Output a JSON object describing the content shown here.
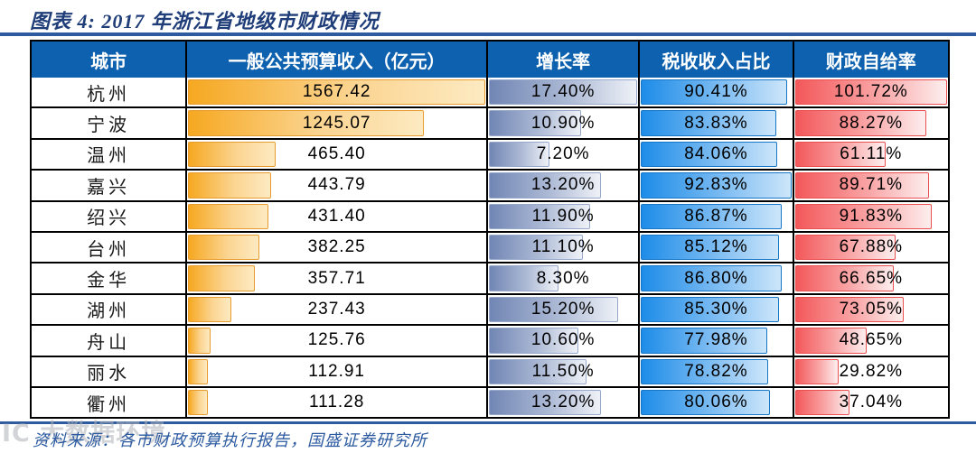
{
  "title": "图表 4: 2017 年浙江省地级市财政情况",
  "source_note": "资料来源：各市财政预算执行报告，国盛证券研究所",
  "watermark_text": "IC 大数据环境",
  "colors": {
    "title_blue": "#1f3d78",
    "rule_blue": "#2e5b9f",
    "header_bg": "#0e61ae",
    "header_text": "#ffffff",
    "bar_revenue": "#f6a821",
    "bar_growth": "#7186b4",
    "bar_tax": "#1d8ce8",
    "bar_self": "#f3585a",
    "grid_border": "#000000"
  },
  "chart_data": {
    "type": "table",
    "title": "图表 4: 2017 年浙江省地级市财政情况",
    "columns": [
      "城市",
      "一般公共预算收入（亿元）",
      "增长率",
      "税收收入占比",
      "财政自给率"
    ],
    "bar_scale": {
      "revenue_max": 1567.42,
      "growth_max": 17.4,
      "tax_max": 92.83,
      "self_max": 101.72
    },
    "rows": [
      {
        "city": "杭州",
        "revenue": 1567.42,
        "growth_pct": 17.4,
        "tax_share_pct": 90.41,
        "self_sufficiency_pct": 101.72
      },
      {
        "city": "宁波",
        "revenue": 1245.07,
        "growth_pct": 10.9,
        "tax_share_pct": 83.83,
        "self_sufficiency_pct": 88.27
      },
      {
        "city": "温州",
        "revenue": 465.4,
        "growth_pct": 7.2,
        "tax_share_pct": 84.06,
        "self_sufficiency_pct": 61.11
      },
      {
        "city": "嘉兴",
        "revenue": 443.79,
        "growth_pct": 13.2,
        "tax_share_pct": 92.83,
        "self_sufficiency_pct": 89.71
      },
      {
        "city": "绍兴",
        "revenue": 431.4,
        "growth_pct": 11.9,
        "tax_share_pct": 86.87,
        "self_sufficiency_pct": 91.83
      },
      {
        "city": "台州",
        "revenue": 382.25,
        "growth_pct": 11.1,
        "tax_share_pct": 85.12,
        "self_sufficiency_pct": 67.88
      },
      {
        "city": "金华",
        "revenue": 357.71,
        "growth_pct": 8.3,
        "tax_share_pct": 86.8,
        "self_sufficiency_pct": 66.65
      },
      {
        "city": "湖州",
        "revenue": 237.43,
        "growth_pct": 15.2,
        "tax_share_pct": 85.3,
        "self_sufficiency_pct": 73.05
      },
      {
        "city": "舟山",
        "revenue": 125.76,
        "growth_pct": 10.6,
        "tax_share_pct": 77.98,
        "self_sufficiency_pct": 48.65
      },
      {
        "city": "丽水",
        "revenue": 112.91,
        "growth_pct": 11.5,
        "tax_share_pct": 78.82,
        "self_sufficiency_pct": 29.82
      },
      {
        "city": "衢州",
        "revenue": 111.28,
        "growth_pct": 13.2,
        "tax_share_pct": 80.06,
        "self_sufficiency_pct": 37.04
      }
    ]
  }
}
